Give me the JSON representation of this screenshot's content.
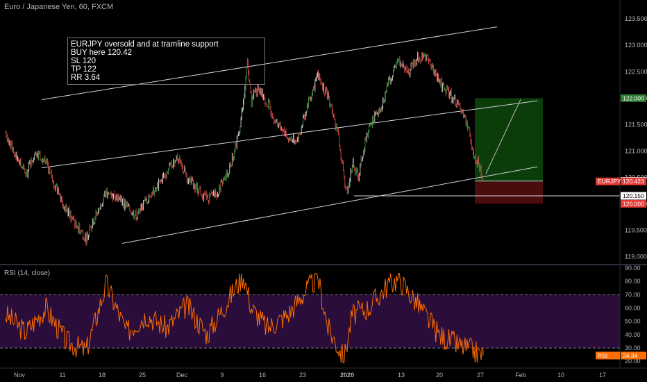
{
  "header": {
    "title": "Euro / Japanese Yen, 60, FXCM",
    "indicator_title": "RSI (14, close)"
  },
  "annotation": {
    "lines": [
      "EURJPY oversold and at tramline support",
      "",
      "BUY here 120.42",
      "SL 120",
      "TP 122",
      "RR 3.64"
    ]
  },
  "colors": {
    "background": "#000000",
    "up_candle": "#26a69a",
    "down_candle": "#ef5350",
    "bright_green": "#4caf50",
    "rsi_line": "#ff6d00",
    "rsi_band": "#2a0d3a",
    "profit_zone": "#0b3d0b",
    "loss_zone": "#4a0d0d",
    "price_tag": "#e53935",
    "tp_tag": "#2e7d32"
  },
  "chart_data": [
    {
      "type": "candlestick",
      "title": "Euro / Japanese Yen, 60, FXCM",
      "ylim": [
        118.9,
        123.7
      ],
      "y_ticks": [
        "123.500",
        "123.000",
        "122.500",
        "122.000",
        "121.500",
        "121.000",
        "120.500",
        "120.000",
        "119.500",
        "119.000"
      ],
      "x_ticks": [
        "Nov",
        "11",
        "18",
        "25",
        "Dec",
        "9",
        "16",
        "23",
        "2020",
        "13",
        "20",
        "27",
        "Feb",
        "10",
        "17"
      ],
      "series": [
        {
          "name": "EURJPY",
          "points": [
            [
              0,
              121.35
            ],
            [
              5,
              120.9
            ],
            [
              10,
              120.55
            ],
            [
              15,
              121.0
            ],
            [
              20,
              120.8
            ],
            [
              25,
              120.3
            ],
            [
              30,
              119.9
            ],
            [
              35,
              119.6
            ],
            [
              40,
              119.35
            ],
            [
              45,
              119.8
            ],
            [
              50,
              120.2
            ],
            [
              55,
              120.15
            ],
            [
              60,
              119.95
            ],
            [
              65,
              119.75
            ],
            [
              70,
              120.1
            ],
            [
              75,
              120.3
            ],
            [
              80,
              120.6
            ],
            [
              85,
              120.9
            ],
            [
              90,
              120.5
            ],
            [
              95,
              120.3
            ],
            [
              100,
              120.1
            ],
            [
              105,
              120.2
            ],
            [
              110,
              120.55
            ],
            [
              115,
              121.2
            ],
            [
              118,
              121.9
            ],
            [
              120,
              122.65
            ],
            [
              122,
              121.95
            ],
            [
              125,
              122.2
            ],
            [
              130,
              121.9
            ],
            [
              135,
              121.5
            ],
            [
              140,
              121.25
            ],
            [
              145,
              121.2
            ],
            [
              150,
              121.9
            ],
            [
              155,
              122.45
            ],
            [
              160,
              122.0
            ],
            [
              165,
              121.3
            ],
            [
              168,
              120.45
            ],
            [
              170,
              120.25
            ],
            [
              172,
              120.8
            ],
            [
              175,
              120.5
            ],
            [
              178,
              121.1
            ],
            [
              182,
              121.6
            ],
            [
              186,
              121.75
            ],
            [
              190,
              122.3
            ],
            [
              195,
              122.7
            ],
            [
              200,
              122.5
            ],
            [
              205,
              122.8
            ],
            [
              210,
              122.75
            ],
            [
              215,
              122.3
            ],
            [
              220,
              122.1
            ],
            [
              225,
              121.85
            ],
            [
              230,
              121.4
            ],
            [
              232,
              120.9
            ],
            [
              235,
              120.75
            ],
            [
              237,
              120.42
            ]
          ]
        }
      ],
      "trendlines": [
        {
          "from": [
            0,
            121.97
          ],
          "to": [
            235,
            123.35
          ]
        },
        {
          "from": [
            0,
            120.68
          ],
          "to": [
            255,
            121.95
          ]
        },
        {
          "from": [
            40,
            119.25
          ],
          "to": [
            255,
            120.7
          ]
        }
      ],
      "horizontal_levels": [
        120.431,
        120.15
      ],
      "position": {
        "entry": 120.42,
        "stop_loss": 120.0,
        "take_profit": 122.0
      },
      "price_labels": [
        {
          "text": "122.000",
          "value": 122.0,
          "color": "#2e7d32"
        },
        {
          "text": "120.431",
          "value": 120.431,
          "color": "#ffffff"
        },
        {
          "text": "EURJPY",
          "value": 120.423,
          "color": "#e53935",
          "side": "left"
        },
        {
          "text": "120.423",
          "value": 120.423,
          "color": "#e53935"
        },
        {
          "text": "120.150",
          "value": 120.15,
          "color": "#ffffff"
        },
        {
          "text": "120.000",
          "value": 120.0,
          "color": "#e53935"
        }
      ]
    },
    {
      "type": "line",
      "title": "RSI (14, close)",
      "ylim": [
        17,
        90
      ],
      "y_ticks": [
        "90.00",
        "80.00",
        "70.00",
        "60.00",
        "50.00",
        "40.00",
        "30.00",
        "20.00"
      ],
      "bands": {
        "upper": 70,
        "lower": 30
      },
      "series": [
        {
          "name": "RSI",
          "points": [
            [
              0,
              55
            ],
            [
              10,
              42
            ],
            [
              20,
              60
            ],
            [
              30,
              35
            ],
            [
              40,
              28
            ],
            [
              50,
              78
            ],
            [
              60,
              42
            ],
            [
              70,
              55
            ],
            [
              80,
              45
            ],
            [
              90,
              62
            ],
            [
              100,
              40
            ],
            [
              110,
              65
            ],
            [
              118,
              85
            ],
            [
              122,
              60
            ],
            [
              130,
              45
            ],
            [
              140,
              55
            ],
            [
              150,
              75
            ],
            [
              155,
              83
            ],
            [
              160,
              45
            ],
            [
              168,
              22
            ],
            [
              172,
              55
            ],
            [
              180,
              60
            ],
            [
              190,
              78
            ],
            [
              195,
              82
            ],
            [
              205,
              62
            ],
            [
              215,
              40
            ],
            [
              225,
              32
            ],
            [
              232,
              28
            ],
            [
              237,
              24.34
            ]
          ]
        }
      ],
      "price_labels": [
        {
          "text": "RSI",
          "value": 24.34,
          "color": "#ff6d00",
          "side": "left"
        },
        {
          "text": "24.34",
          "value": 24.34,
          "color": "#ff6d00"
        }
      ]
    }
  ]
}
